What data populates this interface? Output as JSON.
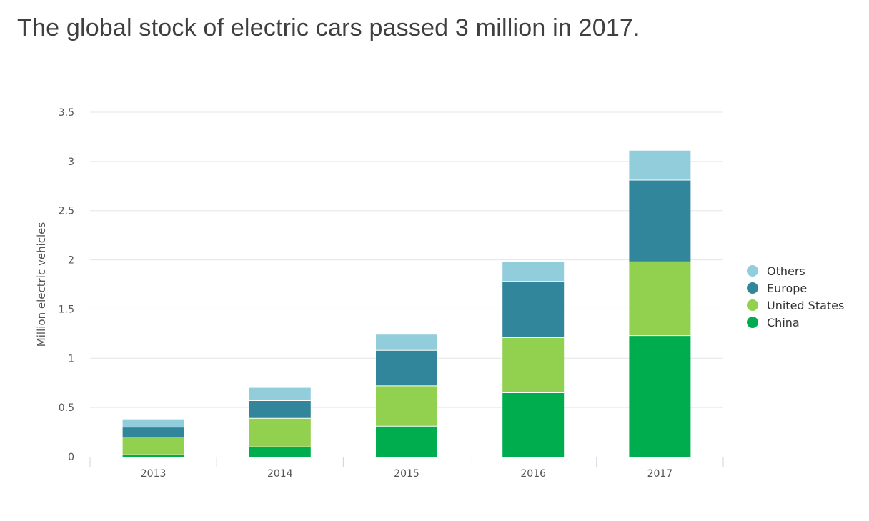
{
  "title": "The global stock of electric cars passed 3 million in 2017.",
  "chart_data": {
    "type": "bar",
    "stacked": true,
    "title": "The global stock of electric cars passed 3 million in 2017.",
    "xlabel": "",
    "ylabel": "Million electric vehicles",
    "ylim": [
      0,
      3.5
    ],
    "yticks": [
      0,
      0.5,
      1,
      1.5,
      2,
      2.5,
      3,
      3.5
    ],
    "ytick_labels": [
      "0",
      "0.5",
      "1",
      "1.5",
      "2",
      "2.5",
      "3",
      "3.5"
    ],
    "categories": [
      "2013",
      "2014",
      "2015",
      "2016",
      "2017"
    ],
    "series": [
      {
        "name": "China",
        "color": "#00ad4e",
        "values": [
          0.02,
          0.1,
          0.31,
          0.65,
          1.23
        ]
      },
      {
        "name": "United States",
        "color": "#92d050",
        "values": [
          0.18,
          0.29,
          0.41,
          0.56,
          0.75
        ]
      },
      {
        "name": "Europe",
        "color": "#31869b",
        "values": [
          0.1,
          0.18,
          0.36,
          0.57,
          0.83
        ]
      },
      {
        "name": "Others",
        "color": "#92cddc",
        "values": [
          0.08,
          0.13,
          0.16,
          0.2,
          0.3
        ]
      }
    ],
    "legend": {
      "position": "right",
      "order": [
        "Others",
        "Europe",
        "United States",
        "China"
      ]
    },
    "grid": true
  }
}
